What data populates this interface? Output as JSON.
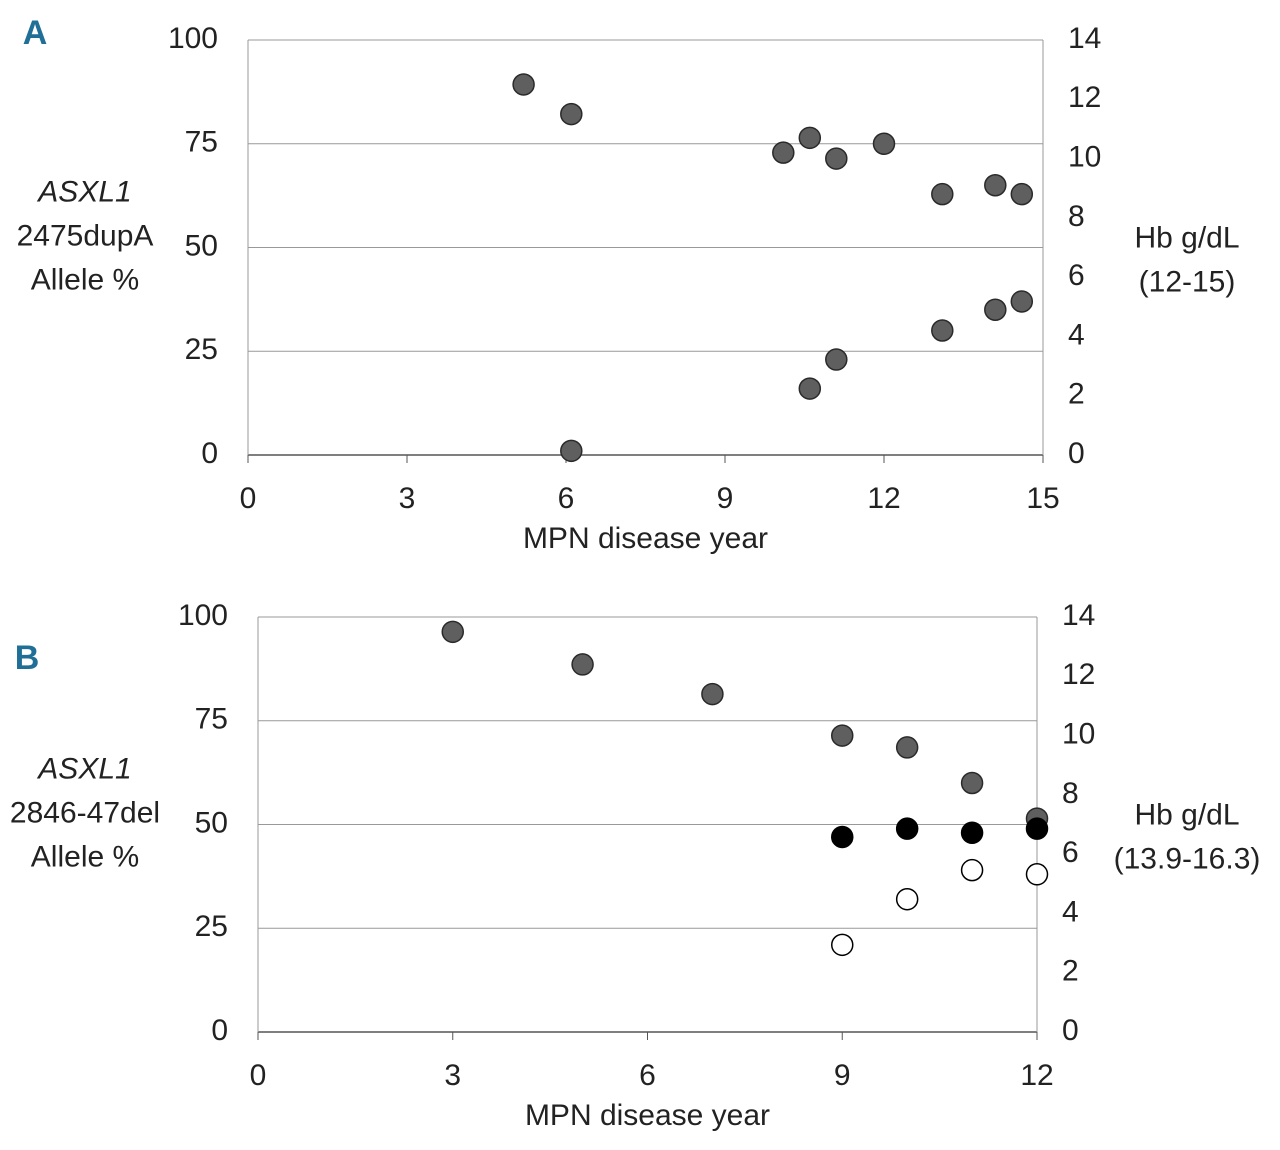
{
  "chart_data": [
    {
      "type": "scatter",
      "label": "A",
      "xlabel": "MPN disease year",
      "ylabel": [
        "ASXL1",
        "2475dupA",
        "Allele %"
      ],
      "y2label": [
        "Hb g/dL",
        "(12-15)"
      ],
      "xlim": [
        0,
        15
      ],
      "xticks": [
        0,
        3,
        6,
        9,
        12,
        15
      ],
      "ylim": [
        0,
        100
      ],
      "yticks": [
        0,
        25,
        50,
        75,
        100
      ],
      "y2lim": [
        0,
        14
      ],
      "y2ticks": [
        0,
        2,
        4,
        6,
        8,
        10,
        12,
        14
      ],
      "grid": true,
      "series": [
        {
          "axis": "y2",
          "color": "#5f5f5f",
          "edgecolor": "#2a2a2a",
          "x": [
            5.2,
            6.1,
            10.1,
            10.6,
            11.1,
            12.0,
            13.1,
            14.1,
            14.6
          ],
          "values": [
            12.5,
            11.5,
            10.2,
            10.7,
            10.0,
            10.5,
            8.8,
            9.1,
            8.8
          ]
        },
        {
          "axis": "y",
          "color": "#5f5f5f",
          "edgecolor": "#2a2a2a",
          "x": [
            6.1,
            10.6,
            11.1,
            13.1,
            14.1,
            14.6
          ],
          "values": [
            1,
            16,
            23,
            30,
            35,
            37
          ]
        }
      ]
    },
    {
      "type": "scatter",
      "label": "B",
      "xlabel": "MPN disease year",
      "ylabel": [
        "ASXL1",
        "2846-47del",
        "Allele %"
      ],
      "y2label": [
        "Hb g/dL",
        "(13.9-16.3)"
      ],
      "xlim": [
        0,
        12
      ],
      "xticks": [
        0,
        3,
        6,
        9,
        12
      ],
      "ylim": [
        0,
        100
      ],
      "yticks": [
        0,
        25,
        50,
        75,
        100
      ],
      "y2lim": [
        0,
        14
      ],
      "y2ticks": [
        0,
        2,
        4,
        6,
        8,
        10,
        12,
        14
      ],
      "grid": true,
      "series": [
        {
          "axis": "y2",
          "color": "#5f5f5f",
          "edgecolor": "#2a2a2a",
          "x": [
            3,
            5,
            7,
            9,
            10,
            11,
            12
          ],
          "values": [
            13.5,
            12.4,
            11.4,
            10.0,
            9.6,
            8.4,
            7.2
          ]
        },
        {
          "axis": "y",
          "color": "#000000",
          "edgecolor": "#000000",
          "x": [
            9,
            10,
            11,
            12
          ],
          "values": [
            47,
            49,
            48,
            49
          ]
        },
        {
          "axis": "y",
          "color": "#ffffff",
          "edgecolor": "#000000",
          "x": [
            9,
            10,
            11,
            12
          ],
          "values": [
            21,
            32,
            39,
            38
          ]
        }
      ]
    }
  ]
}
